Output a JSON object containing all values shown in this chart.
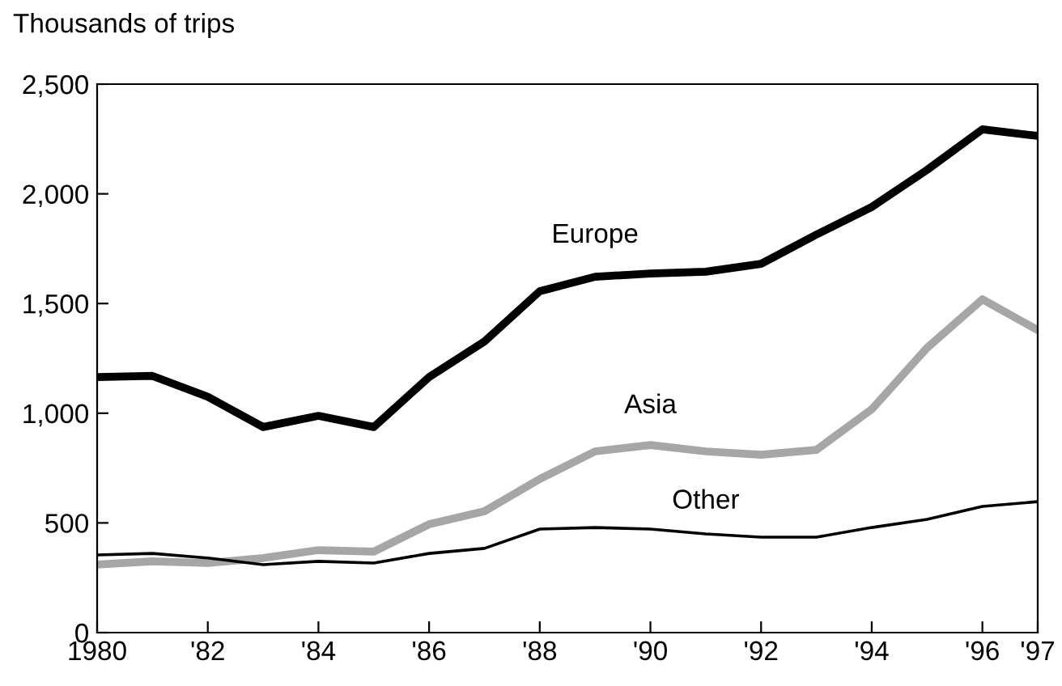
{
  "chart_data": {
    "type": "line",
    "ylabel": "Thousands of trips",
    "x": [
      1980,
      1981,
      1982,
      1983,
      1984,
      1985,
      1986,
      1987,
      1988,
      1989,
      1990,
      1991,
      1992,
      1993,
      1994,
      1995,
      1996,
      1997
    ],
    "series": [
      {
        "name": "Europe",
        "color": "#000000",
        "values": [
          1165,
          1170,
          1075,
          937,
          988,
          937,
          1165,
          1327,
          1556,
          1622,
          1637,
          1645,
          1681,
          1814,
          1940,
          2109,
          2294,
          2264
        ]
      },
      {
        "name": "Asia",
        "color": "#a6a6a6",
        "values": [
          310,
          325,
          317,
          340,
          376,
          369,
          494,
          553,
          700,
          826,
          855,
          826,
          811,
          833,
          1018,
          1298,
          1519,
          1379
        ]
      },
      {
        "name": "Other",
        "color": "#000000",
        "values": [
          354,
          361,
          340,
          310,
          325,
          317,
          361,
          384,
          472,
          479,
          472,
          450,
          435,
          435,
          479,
          516,
          575,
          597
        ]
      }
    ],
    "xlim": [
      1980,
      1997
    ],
    "ylim": [
      0,
      2500
    ],
    "xticks": [
      1980,
      {
        "value": 1982,
        "label": "'82"
      },
      {
        "value": 1984,
        "label": "'84"
      },
      {
        "value": 1986,
        "label": "'86"
      },
      {
        "value": 1988,
        "label": "'88"
      },
      {
        "value": 1990,
        "label": "'90"
      },
      {
        "value": 1992,
        "label": "'92"
      },
      {
        "value": 1994,
        "label": "'94"
      },
      {
        "value": 1996,
        "label": "'96"
      },
      {
        "value": 1997,
        "label": "'97"
      }
    ],
    "yticks": [
      0,
      {
        "value": 500,
        "label": "500"
      },
      {
        "value": 1000,
        "label": "1,000"
      },
      {
        "value": 1500,
        "label": "1,500"
      },
      {
        "value": 2000,
        "label": "2,000"
      },
      {
        "value": 2500,
        "label": "2,500"
      }
    ],
    "grid": false,
    "legend": false,
    "marker": "none",
    "line_style": "solid"
  }
}
